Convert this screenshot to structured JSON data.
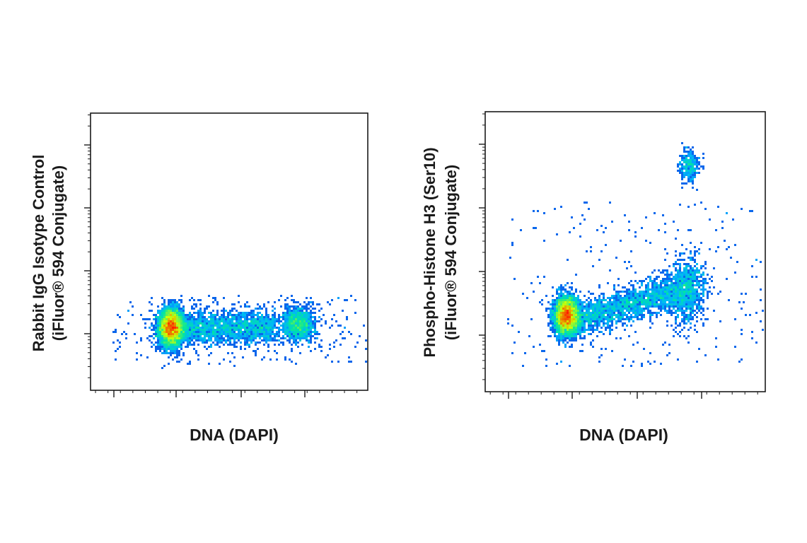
{
  "chart_data": [
    {
      "type": "scatter",
      "subtype": "flow-cytometry-density-plot",
      "xlabel": "DNA (DAPI)",
      "ylabel_line1": "Rabbit IgG Isotype Control",
      "ylabel_line2": "(iFluor® 594 Conjugate)",
      "xscale": "linear",
      "yscale": "log",
      "x_range": [
        0,
        100
      ],
      "y_decades": 4,
      "grid": false,
      "legend": "none",
      "populations": [
        {
          "name": "G1",
          "x_center": 29,
          "y_center_decade": 0.1,
          "spread_x": 2.2,
          "spread_y": 0.15,
          "weight": 0.55
        },
        {
          "name": "S",
          "x_center": 47,
          "y_center_decade": 0.1,
          "spread_x": 14,
          "spread_y": 0.13,
          "weight": 0.3
        },
        {
          "name": "G2",
          "x_center": 75,
          "y_center_decade": 0.15,
          "spread_x": 3,
          "spread_y": 0.13,
          "weight": 0.15
        }
      ]
    },
    {
      "type": "scatter",
      "subtype": "flow-cytometry-density-plot",
      "xlabel": "DNA (DAPI)",
      "ylabel_line1": "Phospho-Histone H3 (Ser10)",
      "ylabel_line2": "(iFluor® 594 Conjugate)",
      "xscale": "linear",
      "yscale": "log",
      "x_range": [
        0,
        100
      ],
      "y_decades": 4,
      "grid": false,
      "legend": "none",
      "populations": [
        {
          "name": "G1",
          "x_center": 29,
          "y_center_decade": 0.3,
          "spread_x": 2.2,
          "spread_y": 0.15,
          "weight": 0.55
        },
        {
          "name": "S",
          "x_center": 49,
          "y_center_decade": 0.45,
          "spread_x": 14,
          "spread_y": 0.14,
          "weight": 0.28
        },
        {
          "name": "G2",
          "x_center": 72,
          "y_center_decade": 0.7,
          "spread_x": 3.2,
          "spread_y": 0.25,
          "weight": 0.13
        },
        {
          "name": "M",
          "x_center": 73,
          "y_center_decade": 2.65,
          "spread_x": 1.8,
          "spread_y": 0.12,
          "weight": 0.04
        }
      ]
    }
  ],
  "colors": {
    "density_low": "#1400d2",
    "density_mid_low": "#00b4ff",
    "density_mid": "#00e6a0",
    "density_mid_high": "#d2ff00",
    "density_high": "#ff1e00",
    "axis": "#1a1a1a"
  }
}
